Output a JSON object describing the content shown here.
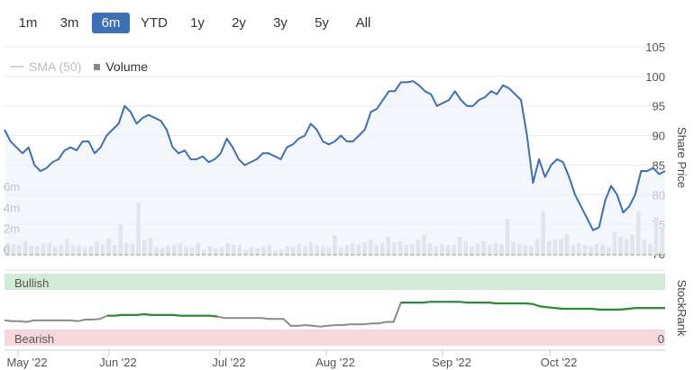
{
  "range_buttons": [
    {
      "label": "1m",
      "active": false
    },
    {
      "label": "3m",
      "active": false
    },
    {
      "label": "6m",
      "active": true
    },
    {
      "label": "YTD",
      "active": false
    },
    {
      "label": "1y",
      "active": false
    },
    {
      "label": "2y",
      "active": false
    },
    {
      "label": "3y",
      "active": false
    },
    {
      "label": "5y",
      "active": false
    },
    {
      "label": "All",
      "active": false
    }
  ],
  "legend": {
    "sma_label": "SMA (50)",
    "volume_label": "Volume"
  },
  "colors": {
    "price_line": "#3d6fb6",
    "price_fill": "#eef2f9",
    "volume": "#c2c4c8",
    "stockrank_line": "#2e8b3a",
    "stockrank_gray": "#8a8a8a",
    "bullish_band": "#d3ebd6",
    "bearish_band": "#f6d8dc",
    "active_button": "#3d6fb6"
  },
  "chart_data": [
    {
      "type": "line",
      "title": "",
      "ylabel": "Share Price",
      "y_ticks": [
        70,
        75,
        80,
        85,
        90,
        95,
        100,
        105
      ],
      "ylim": [
        70,
        105
      ],
      "x_labels": [
        "May '22",
        "Jun '22",
        "Jul '22",
        "Aug '22",
        "Sep '22",
        "Oct '22"
      ],
      "series": [
        {
          "values": [
            91,
            89,
            88,
            87,
            88,
            85,
            84,
            84.5,
            85.5,
            86,
            87.5,
            88,
            87.5,
            89,
            89,
            87,
            88,
            90,
            91,
            92,
            95,
            94,
            92,
            93,
            93.5,
            93,
            92.5,
            91,
            88,
            87,
            87.5,
            86,
            86,
            86.5,
            85.5,
            86,
            87,
            89.5,
            88,
            86,
            85,
            85.5,
            86,
            87,
            87,
            86.5,
            86,
            88,
            88.5,
            89.5,
            90,
            92,
            91,
            89,
            88.5,
            89,
            90,
            89,
            89,
            90,
            91,
            94,
            94.5,
            96,
            97.5,
            97.5,
            99,
            99,
            99.2,
            98.5,
            97.5,
            97,
            95,
            95.5,
            96,
            97.5,
            96,
            95,
            95,
            96,
            96.5,
            97.5,
            97,
            98.5,
            98,
            97,
            96,
            90,
            82,
            86,
            83,
            85,
            86,
            85.5,
            83,
            80,
            78,
            76,
            74,
            74.5,
            79,
            81.5,
            80,
            77,
            78,
            80,
            84,
            84,
            84.5,
            83.5,
            84
          ]
        }
      ]
    },
    {
      "type": "bar",
      "title": "",
      "series_label": "Volume",
      "y_ticks_labels": [
        "0",
        "2m",
        "4m",
        "6m"
      ],
      "ylim": [
        0,
        6
      ],
      "values": [
        1.2,
        1.1,
        1.0,
        1.4,
        1.0,
        0.9,
        1.1,
        1.2,
        0.8,
        1.0,
        1.6,
        1.0,
        1.0,
        0.8,
        0.9,
        1.4,
        1.1,
        1.6,
        1.0,
        3.0,
        1.2,
        1.1,
        5.0,
        1.5,
        1.7,
        0.8,
        0.7,
        0.9,
        1.0,
        1.1,
        0.8,
        0.8,
        1.2,
        0.6,
        0.9,
        0.7,
        0.8,
        1.2,
        1.0,
        1.0,
        0.6,
        0.8,
        0.7,
        0.9,
        1.0,
        0.5,
        0.6,
        0.9,
        0.8,
        1.1,
        0.9,
        1.3,
        1.0,
        0.9,
        0.8,
        1.9,
        0.8,
        1.0,
        1.2,
        1.1,
        1.3,
        1.5,
        1.0,
        1.2,
        1.8,
        1.3,
        1.4,
        1.0,
        1.1,
        1.5,
        1.9,
        1.2,
        0.9,
        1.1,
        1.0,
        1.0,
        1.8,
        1.4,
        0.9,
        1.2,
        1.4,
        1.0,
        1.2,
        1.1,
        3.5,
        1.3,
        1.1,
        1.0,
        0.9,
        1.6,
        4.2,
        1.4,
        1.5,
        1.6,
        2.0,
        1.0,
        1.2,
        1.0,
        0.9,
        1.1,
        1.0,
        0.8,
        2.3,
        1.8,
        1.6,
        2.0,
        4.2,
        1.5,
        1.1,
        3.7,
        2.8
      ]
    },
    {
      "type": "line",
      "title": "",
      "ylabel": "StockRank",
      "band_labels": {
        "bullish": "Bullish",
        "bearish": "Bearish"
      },
      "right_tick": "0",
      "series": [
        {
          "values": [
            35,
            34,
            34,
            33,
            35,
            35,
            35,
            35,
            35,
            35,
            34,
            36,
            36,
            37,
            41,
            41,
            42,
            42,
            42,
            43,
            42,
            42,
            42,
            42,
            41,
            41,
            41,
            41,
            41,
            40,
            38,
            38,
            38,
            38,
            38,
            38,
            37,
            37,
            37,
            28,
            28,
            29,
            28,
            27,
            28,
            29,
            29,
            30,
            30,
            30,
            31,
            31,
            33,
            33,
            58,
            58,
            58,
            58,
            59,
            59,
            59,
            59,
            59,
            58,
            58,
            58,
            58,
            57,
            57,
            57,
            57,
            57,
            56,
            53,
            52,
            51,
            50,
            50,
            50,
            50,
            50,
            49,
            49,
            49,
            49,
            50,
            51,
            51,
            51,
            51,
            51
          ]
        }
      ]
    }
  ]
}
